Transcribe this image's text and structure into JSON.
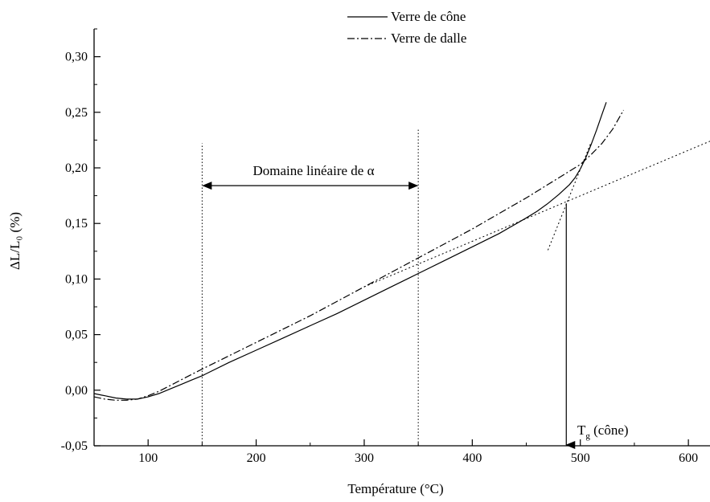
{
  "chart_data": {
    "type": "line",
    "xlabel": "Température (°C)",
    "ylabel": "ΔL/L₀ (%)",
    "xlim": [
      50,
      620
    ],
    "ylim": [
      -0.05,
      0.325
    ],
    "xticks": [
      100,
      200,
      300,
      400,
      500,
      600
    ],
    "xtick_labels": [
      "100",
      "200",
      "300",
      "400",
      "500",
      "600"
    ],
    "yticks": [
      -0.05,
      0.0,
      0.05,
      0.1,
      0.15,
      0.2,
      0.25,
      0.3
    ],
    "ytick_labels": [
      "-0,05",
      "0,00",
      "0,05",
      "0,10",
      "0,15",
      "0,20",
      "0,25",
      "0,30"
    ],
    "grid": false,
    "legend_position": "top-center",
    "series": [
      {
        "name": "Verre de cône",
        "style": "solid",
        "x": [
          50,
          60,
          70,
          80,
          90,
          100,
          110,
          120,
          130,
          140,
          150,
          175,
          200,
          225,
          250,
          275,
          300,
          325,
          350,
          375,
          400,
          425,
          450,
          460,
          470,
          480,
          490,
          495,
          500,
          505,
          510,
          515,
          520,
          524
        ],
        "y": [
          -0.003,
          -0.005,
          -0.007,
          -0.008,
          -0.008,
          -0.006,
          -0.003,
          0.001,
          0.005,
          0.009,
          0.013,
          0.025,
          0.036,
          0.047,
          0.058,
          0.069,
          0.081,
          0.093,
          0.105,
          0.117,
          0.129,
          0.141,
          0.155,
          0.161,
          0.168,
          0.176,
          0.185,
          0.191,
          0.199,
          0.209,
          0.221,
          0.234,
          0.248,
          0.259
        ]
      },
      {
        "name": "Verre de dalle",
        "style": "dashdot",
        "x": [
          50,
          60,
          70,
          80,
          90,
          100,
          110,
          120,
          130,
          140,
          150,
          175,
          200,
          225,
          250,
          275,
          300,
          325,
          350,
          375,
          400,
          425,
          450,
          475,
          500,
          510,
          520,
          530,
          540
        ],
        "y": [
          -0.006,
          -0.008,
          -0.009,
          -0.009,
          -0.008,
          -0.005,
          -0.001,
          0.004,
          0.009,
          0.014,
          0.019,
          0.031,
          0.043,
          0.055,
          0.067,
          0.08,
          0.093,
          0.106,
          0.119,
          0.132,
          0.145,
          0.159,
          0.173,
          0.188,
          0.203,
          0.212,
          0.222,
          0.235,
          0.252
        ]
      }
    ],
    "reference_lines": [
      {
        "style": "dotted",
        "x": [
          300,
          620
        ],
        "y": [
          0.093,
          0.224
        ]
      },
      {
        "style": "dotted",
        "x": [
          470,
          510
        ],
        "y": [
          0.126,
          0.223
        ]
      }
    ],
    "vertical_markers": [
      {
        "style": "dotted",
        "x": 150,
        "y_top": 0.222
      },
      {
        "style": "dotted",
        "x": 350,
        "y_top": 0.235
      }
    ],
    "annotations": {
      "range_label": "Domaine linéaire de α",
      "range_from_x": 150,
      "range_to_x": 350,
      "range_y": 0.184,
      "tg_label_main": "T",
      "tg_label_sub": "g",
      "tg_label_rest": " (cône)",
      "tg_x": 487,
      "tg_y_from": 0.168
    }
  }
}
